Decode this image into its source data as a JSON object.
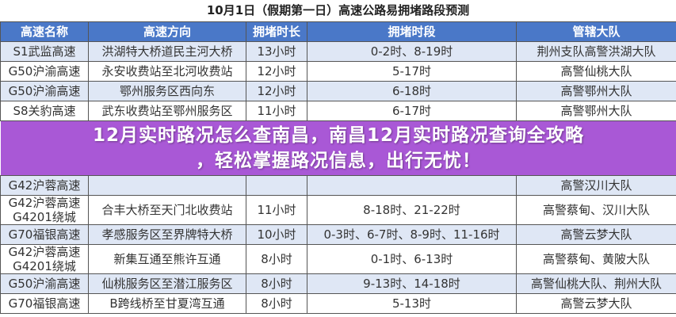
{
  "title": "10月1日（假期第一日）高速公路易拥堵路段预测",
  "headers": [
    "高速名称",
    "高速方向",
    "拥堵时长",
    "拥堵时段",
    "管辖大队"
  ],
  "rows": [
    [
      "S1武监高速",
      "洪湖特大桥道民主河大桥",
      "13小时",
      "0-2时、8-19时",
      "荆州支队高警洪湖大队"
    ],
    [
      "G50沪渝高速",
      "永安收费站至北河收费站",
      "12小时",
      "5-17时",
      "高警仙桃大队"
    ],
    [
      "G50沪渝高速",
      "鄂州服务区西向东",
      "12小时",
      "6-18时",
      "高警鄂州大队"
    ],
    [
      "S8关豹高速",
      "武东收费站至鄂州服务区",
      "11小时",
      "6-17时",
      "高警鄂州大队"
    ],
    [
      "G42沪蓉高速",
      "",
      "",
      "",
      "高警汉川大队"
    ],
    [
      "G42沪蓉高速\nG4201绕城",
      "合丰大桥至天门北收费站",
      "11小时",
      "8-18时、21-22时",
      "高警蔡甸、汉川大队"
    ],
    [
      "G70福银高速",
      "孝感服务区至界牌特大桥",
      "10小时",
      "0-3时、6-7时、8-9时、11-16时",
      "高警云梦大队"
    ],
    [
      "G42沪蓉高速\nG4201绕城",
      "新集互通至熊许互通",
      "8小时",
      "0-1时、6-13时",
      "高警蔡甸、黄陂大队"
    ],
    [
      "G50沪渝高速",
      "仙桃服务区至潜江服务区",
      "8小时",
      "9-13时、14-18时",
      "高警仙桃大队、荆州大队"
    ],
    [
      "G70福银高速",
      "B跨线桥至甘夏湾互通",
      "8小时",
      "5-13时",
      "高警云梦大队"
    ]
  ],
  "banner": {
    "line1": "12月实时路况怎么查南昌，南昌12月实时路况查询全攻略",
    "line2": "，轻松掌握路况信息，出行无忧！"
  },
  "colors": {
    "header": "#4a78c8",
    "banner": "#a046d2",
    "row_alt": "#dfe7f5"
  }
}
